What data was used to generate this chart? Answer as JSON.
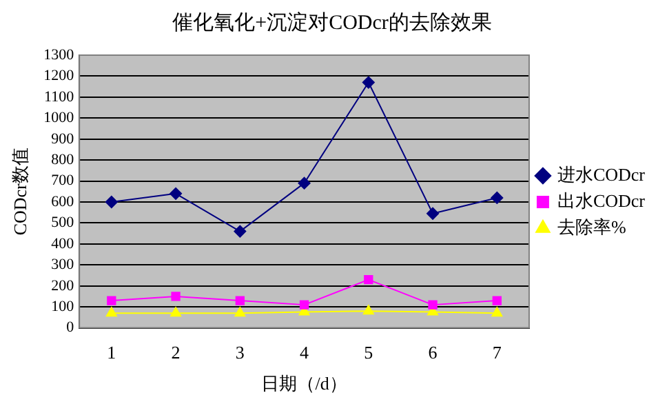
{
  "chart_data": {
    "type": "line",
    "title": "催化氧化+沉淀对CODcr的去除效果",
    "xlabel": "日期（/d）",
    "ylabel": "CODcr数值",
    "categories": [
      "1",
      "2",
      "3",
      "4",
      "5",
      "6",
      "7"
    ],
    "series": [
      {
        "name": "进水CODcr",
        "color": "#000080",
        "marker": "diamond",
        "values": [
          600,
          640,
          460,
          690,
          1170,
          545,
          620
        ]
      },
      {
        "name": "出水CODcr",
        "color": "#ff00ff",
        "marker": "square",
        "values": [
          130,
          150,
          130,
          110,
          230,
          110,
          130
        ]
      },
      {
        "name": "去除率%",
        "color": "#ffff00",
        "marker": "triangle",
        "values": [
          70,
          70,
          70,
          76,
          80,
          76,
          70
        ]
      }
    ],
    "ylim": [
      0,
      1300
    ],
    "yticks": [
      0,
      100,
      200,
      300,
      400,
      500,
      600,
      700,
      800,
      900,
      1000,
      1100,
      1200,
      1300
    ],
    "grid": "y",
    "legend": "right"
  }
}
